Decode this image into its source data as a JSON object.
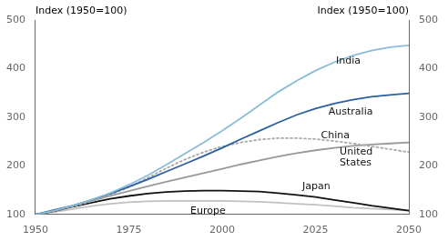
{
  "chart_data": {
    "type": "line",
    "y_label": "Index (1950=100)",
    "y2_label": "Index (1950=100)",
    "x": [
      1950,
      1955,
      1960,
      1965,
      1970,
      1975,
      1980,
      1985,
      1990,
      1995,
      2000,
      2005,
      2010,
      2015,
      2020,
      2025,
      2030,
      2035,
      2040,
      2045,
      2050
    ],
    "series": [
      {
        "name": "India",
        "color": "#88bcd8",
        "line_style": "solid",
        "values": [
          100,
          108,
          118,
          130,
          144,
          161,
          180,
          202,
          225,
          248,
          272,
          298,
          325,
          352,
          375,
          396,
          413,
          427,
          437,
          444,
          448
        ]
      },
      {
        "name": "Australia",
        "color": "#2b5f9e",
        "line_style": "solid",
        "values": [
          100,
          109,
          118,
          130,
          143,
          157,
          172,
          188,
          204,
          220,
          237,
          255,
          272,
          289,
          305,
          318,
          328,
          336,
          342,
          346,
          349
        ]
      },
      {
        "name": "China",
        "color": "#aaaaaa",
        "line_style": "dotted",
        "values": [
          100,
          108,
          116,
          127,
          140,
          156,
          175,
          195,
          213,
          228,
          240,
          248,
          254,
          257,
          257,
          255,
          251,
          246,
          240,
          234,
          228
        ]
      },
      {
        "name": "United States",
        "color": "#999999",
        "line_style": "solid",
        "values": [
          100,
          108,
          118,
          128,
          138,
          148,
          158,
          167,
          176,
          185,
          194,
          203,
          211,
          219,
          226,
          232,
          237,
          241,
          244,
          246,
          248
        ]
      },
      {
        "name": "Japan",
        "color": "#111111",
        "line_style": "solid",
        "values": [
          100,
          107,
          116,
          124,
          132,
          138,
          143,
          146,
          148,
          149,
          149,
          148,
          147,
          144,
          140,
          136,
          130,
          124,
          118,
          113,
          108
        ]
      },
      {
        "name": "Europe",
        "color": "#c0c0c0",
        "line_style": "solid",
        "values": [
          100,
          105,
          111,
          117,
          122,
          125,
          127,
          128,
          128,
          128,
          128,
          127,
          126,
          124,
          122,
          120,
          117,
          114,
          112,
          110,
          108
        ]
      }
    ],
    "xlim": [
      1950,
      2050
    ],
    "xticks": [
      1950,
      1975,
      2000,
      2025,
      2050
    ],
    "ylim": [
      100,
      500
    ],
    "yticks": [
      100,
      200,
      300,
      400,
      500
    ],
    "y2lim": [
      100,
      500
    ],
    "y2ticks": [
      100,
      200,
      300,
      400,
      500
    ],
    "grid": false,
    "annotations": [
      {
        "text": "India",
        "x": 2030,
        "y": 415
      },
      {
        "text": "Australia",
        "x": 2028,
        "y": 310
      },
      {
        "text": "China",
        "x": 2026,
        "y": 263
      },
      {
        "text": "United\nStates",
        "x": 2031,
        "y": 218
      },
      {
        "text": "Japan",
        "x": 2021,
        "y": 158
      },
      {
        "text": "Europe",
        "x": 1991,
        "y": 107
      }
    ]
  }
}
